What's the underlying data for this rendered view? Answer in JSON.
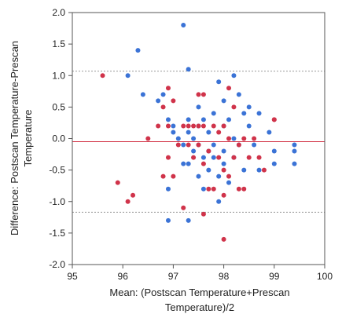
{
  "chart_data": {
    "type": "scatter",
    "title": "",
    "xlabel_lines": [
      "Mean: (Postscan Temperature+Prescan",
      "Temperature)/2"
    ],
    "ylabel_lines": [
      "Difference: Postscan Temperature-Prescan",
      "Temperature"
    ],
    "xlim": [
      95,
      100
    ],
    "ylim": [
      -2.0,
      2.0
    ],
    "x_ticks": [
      95,
      96,
      97,
      98,
      99,
      100
    ],
    "x_tick_labels": [
      "95",
      "96",
      "97",
      "98",
      "99",
      "100"
    ],
    "y_ticks": [
      -2.0,
      -1.5,
      -1.0,
      -0.5,
      0.0,
      0.5,
      1.0,
      1.5,
      2.0
    ],
    "y_tick_labels": [
      "-2.0",
      "-1.5",
      "-1.0",
      "-0.5",
      "0.0",
      "0.5",
      "1.0",
      "1.5",
      "2.0"
    ],
    "grid": false,
    "reference_lines": [
      {
        "kind": "mean",
        "y": -0.05,
        "color": "#d0283c",
        "style": "solid"
      },
      {
        "kind": "upper-limit",
        "y": 1.07,
        "color": "#999999",
        "style": "dashed"
      },
      {
        "kind": "lower-limit",
        "y": -1.17,
        "color": "#999999",
        "style": "dashed"
      }
    ],
    "series": [
      {
        "color": "#3b73d6",
        "points": [
          [
            96.1,
            1.0
          ],
          [
            96.3,
            1.4
          ],
          [
            96.4,
            0.7
          ],
          [
            96.7,
            0.6
          ],
          [
            96.8,
            0.7
          ],
          [
            96.9,
            0.3
          ],
          [
            97.0,
            0.2
          ],
          [
            97.0,
            0.1
          ],
          [
            96.9,
            -0.8
          ],
          [
            96.9,
            -1.3
          ],
          [
            97.1,
            0.0
          ],
          [
            97.2,
            1.8
          ],
          [
            97.2,
            -0.1
          ],
          [
            97.2,
            -0.4
          ],
          [
            97.3,
            1.1
          ],
          [
            97.3,
            0.3
          ],
          [
            97.3,
            0.1
          ],
          [
            97.3,
            -0.4
          ],
          [
            97.4,
            0.0
          ],
          [
            97.4,
            -0.2
          ],
          [
            97.3,
            -1.3
          ],
          [
            97.5,
            0.5
          ],
          [
            97.5,
            0.2
          ],
          [
            97.5,
            -0.1
          ],
          [
            97.5,
            -0.6
          ],
          [
            97.6,
            0.3
          ],
          [
            97.6,
            -0.3
          ],
          [
            97.6,
            -0.8
          ],
          [
            97.7,
            0.1
          ],
          [
            97.7,
            -0.2
          ],
          [
            97.7,
            -0.5
          ],
          [
            97.8,
            0.4
          ],
          [
            97.8,
            -0.1
          ],
          [
            97.8,
            -0.3
          ],
          [
            97.9,
            0.9
          ],
          [
            97.9,
            -0.6
          ],
          [
            97.9,
            -1.0
          ],
          [
            98.0,
            0.6
          ],
          [
            98.0,
            0.2
          ],
          [
            98.0,
            -0.2
          ],
          [
            98.0,
            -0.4
          ],
          [
            98.1,
            0.3
          ],
          [
            98.1,
            -0.7
          ],
          [
            98.2,
            1.0
          ],
          [
            98.2,
            0.0
          ],
          [
            98.2,
            -0.3
          ],
          [
            98.3,
            0.7
          ],
          [
            98.3,
            -0.1
          ],
          [
            98.4,
            0.4
          ],
          [
            98.4,
            -0.5
          ],
          [
            98.5,
            0.5
          ],
          [
            98.5,
            0.2
          ],
          [
            98.6,
            -0.1
          ],
          [
            98.7,
            0.4
          ],
          [
            98.7,
            -0.5
          ],
          [
            98.9,
            0.1
          ],
          [
            99.0,
            -0.2
          ],
          [
            99.0,
            -0.4
          ],
          [
            99.4,
            -0.1
          ],
          [
            99.4,
            -0.4
          ],
          [
            99.4,
            -0.2
          ]
        ]
      },
      {
        "color": "#d0334a",
        "points": [
          [
            95.6,
            1.0
          ],
          [
            95.9,
            -0.7
          ],
          [
            96.1,
            -1.0
          ],
          [
            96.2,
            -0.9
          ],
          [
            96.5,
            0.0
          ],
          [
            96.7,
            0.2
          ],
          [
            96.8,
            0.5
          ],
          [
            96.8,
            -0.6
          ],
          [
            96.9,
            0.8
          ],
          [
            96.9,
            0.2
          ],
          [
            96.9,
            -0.3
          ],
          [
            97.0,
            0.6
          ],
          [
            97.0,
            -0.6
          ],
          [
            97.1,
            -0.1
          ],
          [
            97.2,
            -1.1
          ],
          [
            97.2,
            0.2
          ],
          [
            97.3,
            -0.1
          ],
          [
            97.3,
            0.2
          ],
          [
            97.4,
            -0.3
          ],
          [
            97.4,
            0.2
          ],
          [
            97.5,
            0.7
          ],
          [
            97.5,
            0.2
          ],
          [
            97.5,
            -0.1
          ],
          [
            97.6,
            0.2
          ],
          [
            97.6,
            -1.2
          ],
          [
            97.6,
            -0.4
          ],
          [
            97.6,
            0.7
          ],
          [
            97.7,
            -0.8
          ],
          [
            97.7,
            -0.2
          ],
          [
            97.8,
            0.2
          ],
          [
            97.8,
            -0.8
          ],
          [
            97.9,
            -0.3
          ],
          [
            97.9,
            0.1
          ],
          [
            98.0,
            -0.5
          ],
          [
            98.0,
            -1.6
          ],
          [
            98.0,
            -0.9
          ],
          [
            98.0,
            0.2
          ],
          [
            98.1,
            0.8
          ],
          [
            98.1,
            0.0
          ],
          [
            98.1,
            -0.6
          ],
          [
            98.2,
            -0.3
          ],
          [
            98.2,
            0.5
          ],
          [
            98.3,
            -0.8
          ],
          [
            98.3,
            -0.1
          ],
          [
            98.4,
            -0.8
          ],
          [
            98.4,
            0.0
          ],
          [
            98.5,
            -0.3
          ],
          [
            98.6,
            0.0
          ],
          [
            98.7,
            -0.3
          ],
          [
            98.8,
            -0.5
          ],
          [
            99.0,
            0.3
          ],
          [
            99.0,
            0.3
          ]
        ]
      }
    ]
  }
}
